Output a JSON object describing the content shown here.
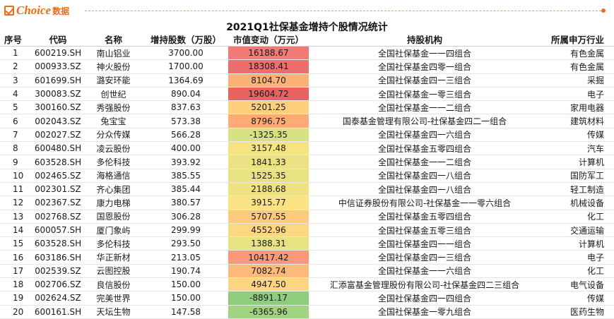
{
  "brand": {
    "name": "Choice",
    "sub": "数据"
  },
  "title": "2021Q1社保基金增持个股情况统计",
  "headers": {
    "idx": "序号",
    "code": "代码",
    "name": "名称",
    "shares": "增持股数（万股）",
    "value": "市值变动（万元）",
    "org": "持股机构",
    "industry": "所属申万行业"
  },
  "rows": [
    {
      "idx": "1",
      "code": "600219.SH",
      "name": "南山铝业",
      "shares": "3700.00",
      "value": "16188.67",
      "org": "全国社保基金一一四组合",
      "industry": "有色金属",
      "heat": "#f07a74"
    },
    {
      "idx": "2",
      "code": "000933.SZ",
      "name": "神火股份",
      "shares": "1700.00",
      "value": "18308.41",
      "org": "全国社保基金四零一组合",
      "industry": "有色金属",
      "heat": "#ee6e6e"
    },
    {
      "idx": "3",
      "code": "601699.SH",
      "name": "潞安环能",
      "shares": "1364.69",
      "value": "8104.70",
      "org": "全国社保基金四一三组合",
      "industry": "采掘",
      "heat": "#fbb277"
    },
    {
      "idx": "4",
      "code": "300083.SZ",
      "name": "创世纪",
      "shares": "890.04",
      "value": "19604.72",
      "org": "全国社保基金一零三组合",
      "industry": "电子",
      "heat": "#e8625f"
    },
    {
      "idx": "5",
      "code": "300160.SZ",
      "name": "秀强股份",
      "shares": "837.63",
      "value": "5201.25",
      "org": "全国社保基金一一二组合",
      "industry": "家用电器",
      "heat": "#fdd07e"
    },
    {
      "idx": "6",
      "code": "002043.SZ",
      "name": "兔宝宝",
      "shares": "573.38",
      "value": "8796.75",
      "org": "国泰基金管理有限公司-社保基金四二一组合",
      "industry": "建筑材料",
      "heat": "#fbab75"
    },
    {
      "idx": "7",
      "code": "002027.SZ",
      "name": "分众传媒",
      "shares": "566.28",
      "value": "-1325.35",
      "org": "全国社保基金四一六组合",
      "industry": "传媒",
      "heat": "#d6e282"
    },
    {
      "idx": "8",
      "code": "600480.SH",
      "name": "凌云股份",
      "shares": "400.00",
      "value": "3157.48",
      "org": "全国社保基金五零四组合",
      "industry": "汽车",
      "heat": "#f6e483"
    },
    {
      "idx": "9",
      "code": "603528.SH",
      "name": "多伦科技",
      "shares": "393.92",
      "value": "1841.33",
      "org": "全国社保基金一一二组合",
      "industry": "计算机",
      "heat": "#ece283"
    },
    {
      "idx": "10",
      "code": "002465.SZ",
      "name": "海格通信",
      "shares": "385.55",
      "value": "1525.35",
      "org": "全国社保基金四一八组合",
      "industry": "国防军工",
      "heat": "#e9e283"
    },
    {
      "idx": "11",
      "code": "002301.SZ",
      "name": "齐心集团",
      "shares": "385.44",
      "value": "2188.68",
      "org": "全国社保基金四一八组合",
      "industry": "轻工制造",
      "heat": "#eee283"
    },
    {
      "idx": "12",
      "code": "002367.SZ",
      "name": "康力电梯",
      "shares": "380.57",
      "value": "3915.77",
      "org": "中信证券股份有限公司-社保基金一一零六组合",
      "industry": "机械设备",
      "heat": "#fbe383"
    },
    {
      "idx": "13",
      "code": "002768.SZ",
      "name": "国恩股份",
      "shares": "306.28",
      "value": "5707.55",
      "org": "全国社保基金五零四组合",
      "industry": "化工",
      "heat": "#fdc97d"
    },
    {
      "idx": "14",
      "code": "600057.SH",
      "name": "厦门象屿",
      "shares": "299.99",
      "value": "4552.96",
      "org": "全国社保基金五零三组合",
      "industry": "交通运输",
      "heat": "#fdd880"
    },
    {
      "idx": "15",
      "code": "603528.SH",
      "name": "多伦科技",
      "shares": "293.50",
      "value": "1388.31",
      "org": "全国社保基金四一一组合",
      "industry": "计算机",
      "heat": "#e8e283"
    },
    {
      "idx": "16",
      "code": "603186.SH",
      "name": "华正新材",
      "shares": "213.05",
      "value": "10417.42",
      "org": "全国社保基金四一三组合",
      "industry": "电子",
      "heat": "#f9997a"
    },
    {
      "idx": "17",
      "code": "002539.SZ",
      "name": "云图控股",
      "shares": "190.74",
      "value": "7082.74",
      "org": "全国社保基金一一六组合",
      "industry": "化工",
      "heat": "#fcba79"
    },
    {
      "idx": "18",
      "code": "002706.SZ",
      "name": "良信股份",
      "shares": "150.00",
      "value": "4947.50",
      "org": "汇添富基金管理股份有限公司-社保基金四二三组合",
      "industry": "电气设备",
      "heat": "#fdd47f"
    },
    {
      "idx": "19",
      "code": "002624.SZ",
      "name": "完美世界",
      "shares": "150.00",
      "value": "-8891.17",
      "org": "全国社保基金四一四组合",
      "industry": "传媒",
      "heat": "#8fcd7e"
    },
    {
      "idx": "20",
      "code": "600161.SH",
      "name": "天坛生物",
      "shares": "147.58",
      "value": "-6365.96",
      "org": "全国社保基金一零九组合",
      "industry": "医药生物",
      "heat": "#a2d47f"
    }
  ]
}
